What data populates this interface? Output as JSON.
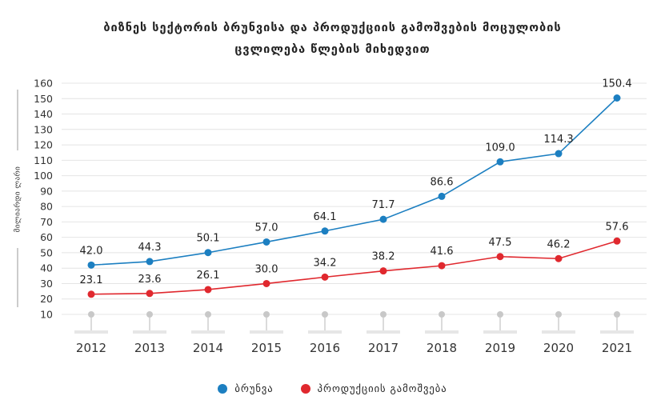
{
  "chart_data": {
    "type": "line",
    "title_line1": "ბიზნეს სექტორის ბრუნვისა და პროდუქციის გამოშვების მოცულობის",
    "title_line2": "ცვლილება წლების მიხედვით",
    "ylabel": "მილიარდი ლარი",
    "xlabel": "",
    "x": [
      "2012",
      "2013",
      "2014",
      "2015",
      "2016",
      "2017",
      "2018",
      "2019",
      "2020",
      "2021"
    ],
    "ylim": [
      10,
      160
    ],
    "yticks": [
      10,
      20,
      30,
      40,
      50,
      60,
      70,
      80,
      90,
      100,
      110,
      120,
      130,
      140,
      150,
      160
    ],
    "grid": true,
    "legend_position": "bottom-center",
    "series": [
      {
        "name": "ბრუნვა",
        "color": "#1c7fc1",
        "values": [
          42.0,
          44.3,
          50.1,
          57.0,
          64.1,
          71.7,
          86.6,
          109.0,
          114.3,
          150.4
        ],
        "labels": [
          "42.0",
          "44.3",
          "50.1",
          "57.0",
          "64.1",
          "71.7",
          "86.6",
          "109.0",
          "114.3",
          "150.4"
        ]
      },
      {
        "name": "პროდუქციის გამოშვება",
        "color": "#e0282e",
        "values": [
          23.1,
          23.6,
          26.1,
          30.0,
          34.2,
          38.2,
          41.6,
          47.5,
          46.2,
          57.6
        ],
        "labels": [
          "23.1",
          "23.6",
          "26.1",
          "30.0",
          "34.2",
          "38.2",
          "41.6",
          "47.5",
          "46.2",
          "57.6"
        ]
      }
    ]
  }
}
